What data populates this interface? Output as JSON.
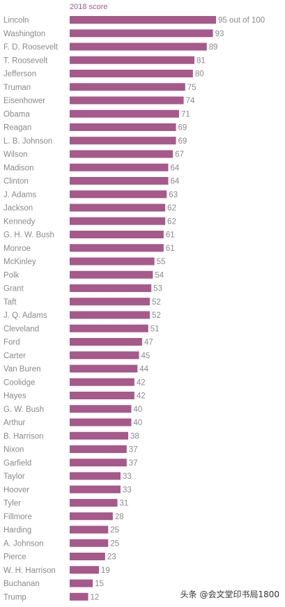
{
  "chart_data": {
    "type": "bar",
    "orientation": "horizontal",
    "column_header": "2018 score",
    "first_value_suffix": " out of 100",
    "categories": [
      "Lincoln",
      "Washington",
      "F. D. Roosevelt",
      "T. Roosevelt",
      "Jefferson",
      "Truman",
      "Eisenhower",
      "Obama",
      "Reagan",
      "L. B. Johnson",
      "Wilson",
      "Madison",
      "Clinton",
      "J. Adams",
      "Jackson",
      "Kennedy",
      "G. H. W. Bush",
      "Monroe",
      "McKinley",
      "Polk",
      "Grant",
      "Taft",
      "J. Q. Adams",
      "Cleveland",
      "Ford",
      "Carter",
      "Van Buren",
      "Coolidge",
      "Hayes",
      "G. W. Bush",
      "Arthur",
      "B. Harrison",
      "Nixon",
      "Garfield",
      "Taylor",
      "Hoover",
      "Tyler",
      "Fillmore",
      "Harding",
      "A. Johnson",
      "Pierce",
      "W. H. Harrison",
      "Buchanan",
      "Trump"
    ],
    "values": [
      95,
      93,
      89,
      81,
      80,
      75,
      74,
      71,
      69,
      69,
      67,
      64,
      64,
      63,
      62,
      62,
      61,
      61,
      55,
      54,
      53,
      52,
      52,
      51,
      47,
      45,
      44,
      42,
      42,
      40,
      40,
      38,
      37,
      37,
      33,
      33,
      31,
      28,
      25,
      25,
      23,
      19,
      15,
      12
    ],
    "xlim": [
      0,
      100
    ],
    "grid": false,
    "legend": "none",
    "colors": {
      "bar": "#a6598a",
      "header": "#a6598a",
      "label": "#8a8a8a"
    }
  },
  "watermark": {
    "text": "头条 @会文堂印书局1800"
  }
}
